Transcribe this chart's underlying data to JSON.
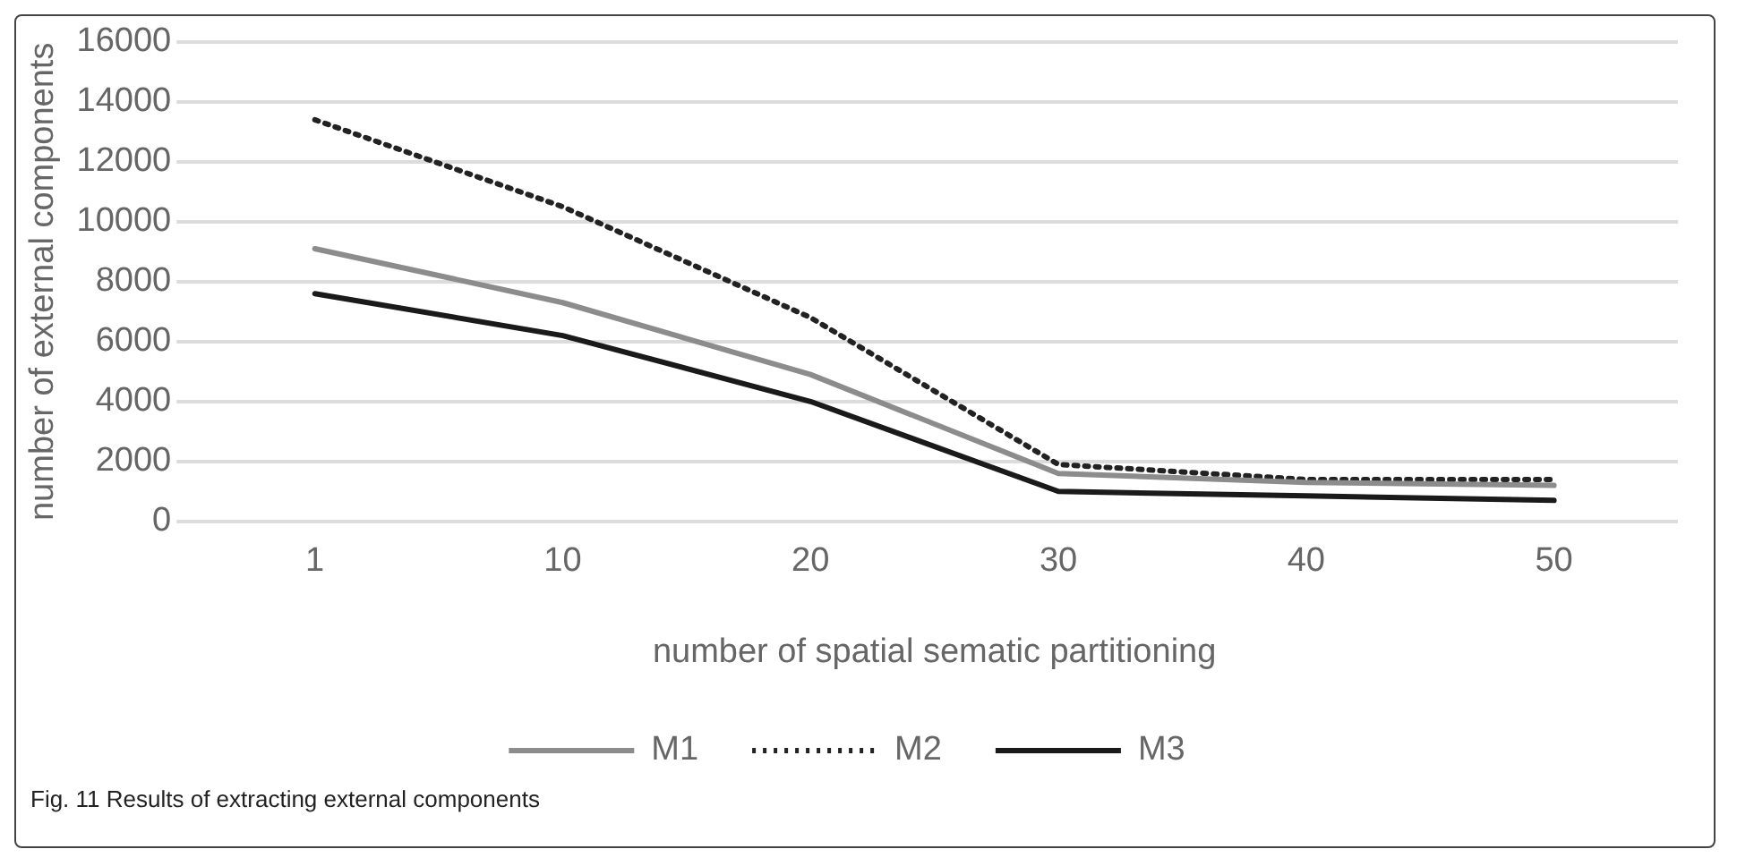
{
  "chart_data": {
    "type": "line",
    "xlabel": "number of spatial sematic partitioning",
    "ylabel": "number of external components",
    "categories": [
      "1",
      "10",
      "20",
      "30",
      "40",
      "50"
    ],
    "series": [
      {
        "name": "M1",
        "color": "#8c8c8c",
        "values": [
          9100,
          7300,
          4900,
          1600,
          1300,
          1200
        ]
      },
      {
        "name": "M2",
        "color": "#222222",
        "line_style": "dotted",
        "values": [
          13400,
          10500,
          6800,
          1900,
          1400,
          1400
        ]
      },
      {
        "name": "M3",
        "color": "#1a1a1a",
        "values": [
          7600,
          6200,
          4000,
          1000,
          850,
          700
        ]
      }
    ],
    "ylim": [
      0,
      16000
    ],
    "yticks": [
      0,
      2000,
      4000,
      6000,
      8000,
      10000,
      12000,
      14000,
      16000
    ],
    "grid": "y",
    "legend": "bottom",
    "marker": "none",
    "line_style": "solid",
    "annotations": [
      "Fig. 11 Results of extracting external components"
    ]
  }
}
